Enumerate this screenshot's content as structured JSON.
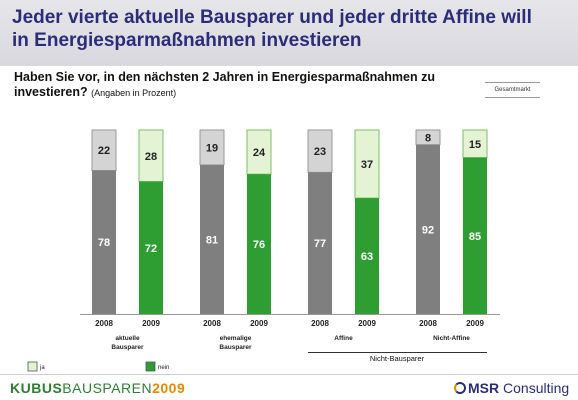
{
  "title": "Jeder vierte aktuelle Bausparer und jeder dritte Affine will in Energiesparmaßnahmen investieren",
  "question": "Haben Sie vor, in den nächsten 2 Jahren in Energiesparmaßnahmen zu investieren?",
  "question_note": "(Angaben in Prozent)",
  "tag": "Gesamtmarkt",
  "footer": {
    "brand_kubus": "KUBUS",
    "brand_bausparen": "BAUSPAREN",
    "brand_year": "2009",
    "company_prefix": "MSR",
    "company_suffix": " Consulting"
  },
  "chart_data": {
    "type": "bar",
    "stacked": true,
    "ylim": [
      0,
      100
    ],
    "groups": [
      {
        "label": "aktuelle Bausparer",
        "bars": [
          {
            "year": "2008",
            "nein": 78,
            "ja": 22
          },
          {
            "year": "2009",
            "nein": 72,
            "ja": 28
          }
        ]
      },
      {
        "label": "ehemalige Bausparer",
        "bars": [
          {
            "year": "2008",
            "nein": 81,
            "ja": 19
          },
          {
            "year": "2009",
            "nein": 76,
            "ja": 24
          }
        ]
      },
      {
        "label": "Affine",
        "bars": [
          {
            "year": "2008",
            "nein": 77,
            "ja": 23
          },
          {
            "year": "2009",
            "nein": 63,
            "ja": 37
          }
        ]
      },
      {
        "label": "Nicht-Affine",
        "bars": [
          {
            "year": "2008",
            "nein": 92,
            "ja": 8
          },
          {
            "year": "2009",
            "nein": 85,
            "ja": 15
          }
        ]
      }
    ],
    "bracket_label": "Nicht-Bausparer",
    "legend": [
      {
        "key": "ja",
        "label": "ja"
      },
      {
        "key": "nein",
        "label": "nein"
      }
    ],
    "colors": {
      "ja_2008": "#d4d4d4",
      "nein_2008": "#7f7f7f",
      "ja_2009": "#e3f3d3",
      "nein_2009": "#2e9e33",
      "stroke_2008": "#9a9a9a",
      "stroke_2009": "#7cbf6a"
    }
  }
}
